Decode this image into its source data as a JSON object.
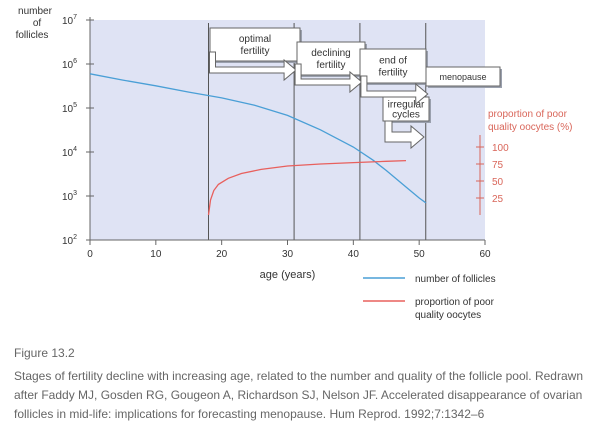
{
  "chart_data": {
    "type": "line",
    "title": "",
    "xlabel": "age (years)",
    "x_ticks": [
      0,
      10,
      20,
      30,
      40,
      50,
      60
    ],
    "xlim": [
      0,
      60
    ],
    "ylabel_left": [
      "number",
      "of",
      "follicles"
    ],
    "y_left_scale": "log",
    "y_left_ticks": [
      {
        "base": "10",
        "exp": "2",
        "value": 100
      },
      {
        "base": "10",
        "exp": "3",
        "value": 1000
      },
      {
        "base": "10",
        "exp": "4",
        "value": 10000
      },
      {
        "base": "10",
        "exp": "5",
        "value": 100000
      },
      {
        "base": "10",
        "exp": "6",
        "value": 1000000
      },
      {
        "base": "10",
        "exp": "7",
        "value": 10000000
      }
    ],
    "ylabel_right": [
      "proportion of poor",
      "quality oocytes (%)"
    ],
    "y_right_ticks": [
      25,
      50,
      75,
      100
    ],
    "colors": {
      "follicles": "#4a9fd6",
      "poor_quality": "#e8605d",
      "plot_bg": "#dfe3f4",
      "right_axis": "#d9665a"
    },
    "series": [
      {
        "name": "number of follicles",
        "axis": "left",
        "color": "#4a9fd6",
        "points": [
          [
            0,
            600000
          ],
          [
            5,
            430000
          ],
          [
            10,
            320000
          ],
          [
            15,
            230000
          ],
          [
            20,
            170000
          ],
          [
            25,
            115000
          ],
          [
            30,
            68000
          ],
          [
            35,
            32000
          ],
          [
            40,
            13000
          ],
          [
            43,
            6500
          ],
          [
            45,
            3800
          ],
          [
            48,
            1600
          ],
          [
            50,
            900
          ],
          [
            51,
            700
          ]
        ]
      },
      {
        "name": "proportion of poor quality oocytes",
        "axis": "right",
        "color": "#e8605d",
        "points": [
          [
            18,
            0
          ],
          [
            18.3,
            22
          ],
          [
            18.8,
            36
          ],
          [
            19.5,
            45
          ],
          [
            21,
            54
          ],
          [
            23,
            61
          ],
          [
            26,
            67
          ],
          [
            30,
            72
          ],
          [
            35,
            75
          ],
          [
            40,
            77
          ],
          [
            45,
            79
          ],
          [
            48,
            80
          ]
        ]
      }
    ],
    "stage_lines_age": [
      18,
      31,
      41,
      51
    ],
    "stages": [
      {
        "id": "optimal-fertility",
        "lines": [
          "optimal",
          "fertility"
        ]
      },
      {
        "id": "declining-fertility",
        "lines": [
          "declining",
          "fertility"
        ]
      },
      {
        "id": "end-of-fertility",
        "lines": [
          "end of",
          "fertility"
        ]
      },
      {
        "id": "irregular-cycles",
        "lines": [
          "irregular",
          "cycles"
        ]
      },
      {
        "id": "menopause",
        "lines": [
          "menopause"
        ]
      }
    ],
    "legend": [
      {
        "label": [
          "number of follicles"
        ],
        "color": "#4a9fd6"
      },
      {
        "label": [
          "proportion of poor",
          "quality oocytes"
        ],
        "color": "#e8605d"
      }
    ]
  },
  "caption": {
    "figure_label": "Figure 13.2",
    "text": "Stages of fertility decline with increasing age, related to the number and quality of the follicle pool. Redrawn after Faddy MJ, Gosden RG, Gougeon A, Richardson SJ, Nelson JF. Accelerated disappearance of ovarian follicles in mid-life: implications for forecasting menopause. Hum Reprod. 1992;7:1342–6"
  }
}
